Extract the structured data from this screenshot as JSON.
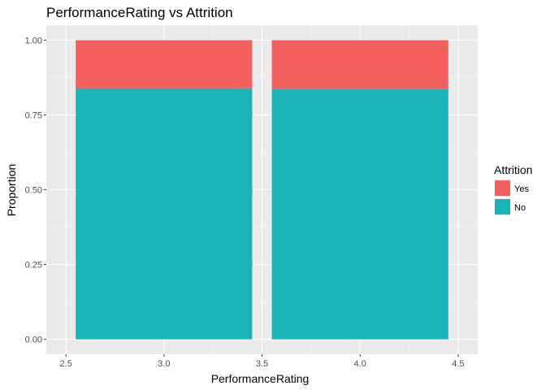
{
  "chart_data": {
    "type": "bar",
    "stacked": true,
    "title": "PerformanceRating vs Attrition",
    "xlabel": "PerformanceRating",
    "ylabel": "Proportion",
    "categories": [
      "3",
      "4"
    ],
    "x": [
      3.0,
      4.0
    ],
    "bar_width": 0.9,
    "xlim": [
      2.5,
      4.5
    ],
    "ylim": [
      0,
      1
    ],
    "xticks": [
      2.5,
      3.0,
      3.5,
      4.0,
      4.5
    ],
    "xtick_labels": [
      "2.5",
      "3.0",
      "3.5",
      "4.0",
      "4.5"
    ],
    "yticks": [
      0,
      0.25,
      0.5,
      0.75,
      1.0
    ],
    "ytick_labels": [
      "0.00",
      "0.25",
      "0.50",
      "0.75",
      "1.00"
    ],
    "grid": true,
    "series": [
      {
        "name": "No",
        "color": "#19b4b8",
        "values": [
          0.839,
          0.836
        ]
      },
      {
        "name": "Yes",
        "color": "#f5605e",
        "values": [
          0.161,
          0.164
        ]
      }
    ],
    "legend": {
      "title": "Attrition",
      "placement": "right",
      "entries": [
        "Yes",
        "No"
      ]
    }
  }
}
